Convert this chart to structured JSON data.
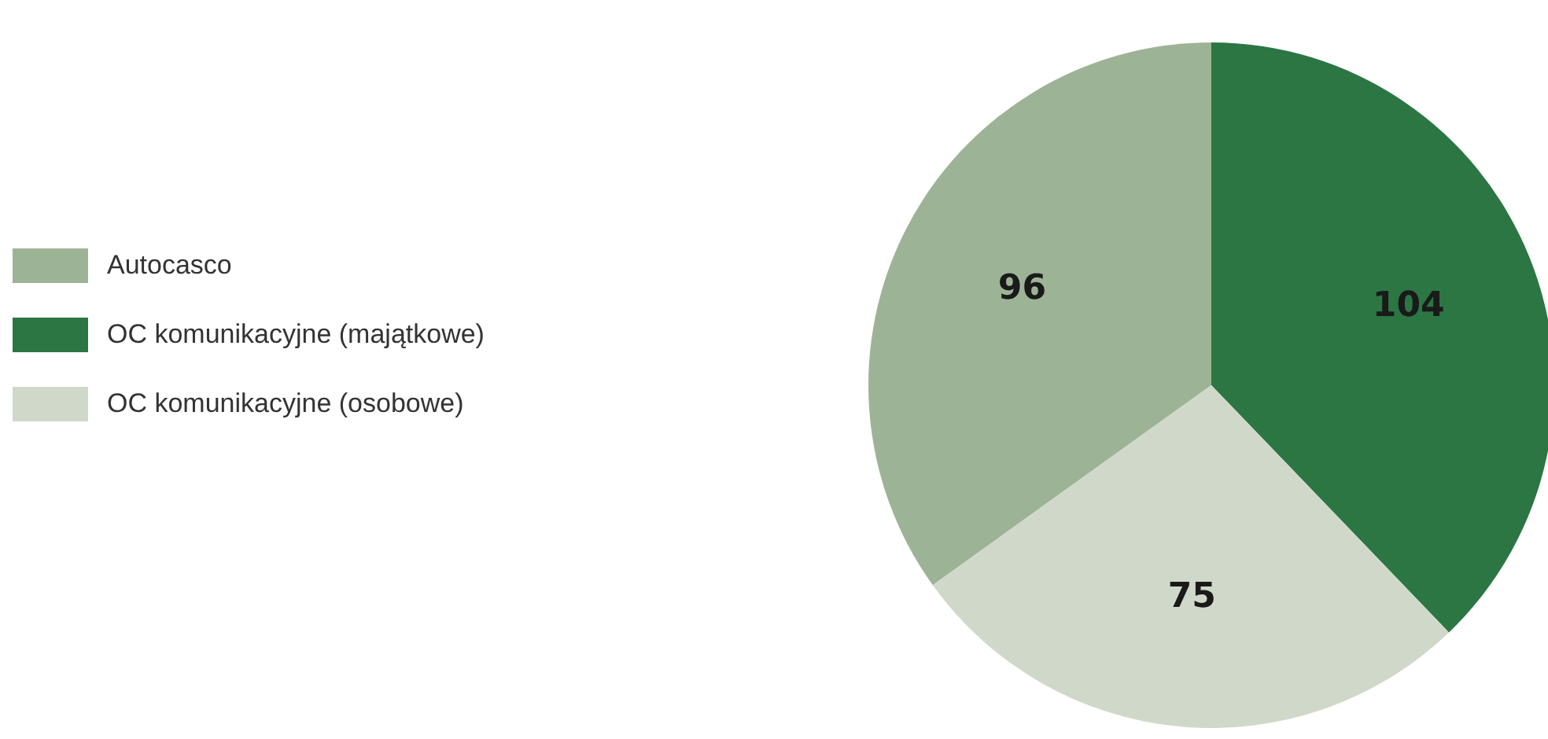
{
  "chart_data": {
    "type": "pie",
    "categories": [
      "Autocasco",
      "OC komunikacyjne (majątkowe)",
      "OC komunikacyjne (osobowe)"
    ],
    "values": [
      96,
      104,
      75
    ],
    "colors": [
      "#9db396",
      "#2b7643",
      "#d0d9c9"
    ],
    "data_labels": true,
    "legend": "left"
  }
}
